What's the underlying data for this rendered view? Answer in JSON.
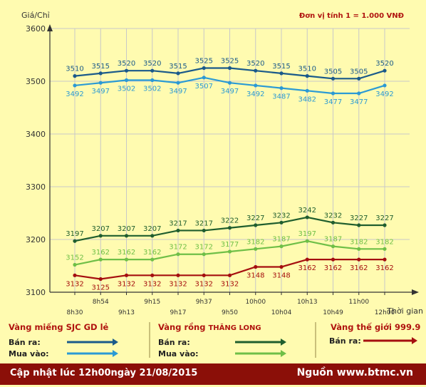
{
  "header": {
    "y_axis_title": "Giá/Chỉ",
    "unit_note": "Đơn vị tính 1 = 1.000 VNĐ",
    "x_axis_title": "Thời gian"
  },
  "chart_data": {
    "type": "line",
    "ylim": [
      3100,
      3600
    ],
    "y_ticks": [
      3100,
      3200,
      3300,
      3400,
      3500,
      3600
    ],
    "categories": [
      "8h30",
      "8h54",
      "9h13",
      "9h15",
      "9h17",
      "9h37",
      "9h50",
      "10h00",
      "10h04",
      "10h13",
      "10h49",
      "11h00",
      "12h00"
    ],
    "grid": true,
    "series": [
      {
        "name": "Vàng miếng SJC GD lẻ - Bán ra",
        "color": "#1a5a8a",
        "labels_above": true,
        "values": [
          3510,
          3515,
          3520,
          3520,
          3515,
          3525,
          3525,
          3520,
          3515,
          3510,
          3505,
          3505,
          3520
        ]
      },
      {
        "name": "Vàng miếng SJC GD lẻ - Mua vào",
        "color": "#2b9ad4",
        "labels_above": false,
        "values": [
          3492,
          3497,
          3502,
          3502,
          3497,
          3507,
          3497,
          3492,
          3487,
          3482,
          3477,
          3477,
          3492
        ]
      },
      {
        "name": "Vàng rồng THĂNG LONG - Bán ra",
        "color": "#1f5e2e",
        "labels_above": true,
        "values": [
          3197,
          3207,
          3207,
          3207,
          3217,
          3217,
          3222,
          3227,
          3232,
          3242,
          3232,
          3227,
          3227
        ]
      },
      {
        "name": "Vàng rồng THĂNG LONG - Mua vào",
        "color": "#6fbf47",
        "labels_above": true,
        "values": [
          3152,
          3162,
          3162,
          3162,
          3172,
          3172,
          3177,
          3182,
          3187,
          3197,
          3187,
          3182,
          3182
        ]
      },
      {
        "name": "Vàng thế giới 999.9 - Bán ra",
        "color": "#a50f0f",
        "labels_above": false,
        "values": [
          3132,
          3125,
          3132,
          3132,
          3132,
          3132,
          3132,
          3148,
          3148,
          3162,
          3162,
          3162,
          3162
        ]
      }
    ]
  },
  "legend": {
    "sjc": {
      "title": "Vàng miếng SJC GD lẻ",
      "sell_label": "Bán ra:",
      "buy_label": "Mua vào:",
      "sell_color": "#1a5a8a",
      "buy_color": "#2b9ad4"
    },
    "thang_long": {
      "title_prefix": "Vàng rồng ",
      "title_brand": "THĂNG LONG",
      "sell_label": "Bán ra:",
      "buy_label": "Mua vào:",
      "sell_color": "#1f5e2e",
      "buy_color": "#6fbf47"
    },
    "world": {
      "title": "Vàng thế giới 999.9",
      "sell_label": "Bán ra:",
      "sell_color": "#a50f0f"
    }
  },
  "footer": {
    "updated": "Cập nhật lúc 12h00ngày 21/08/2015",
    "source": "Nguồn www.btmc.vn"
  }
}
